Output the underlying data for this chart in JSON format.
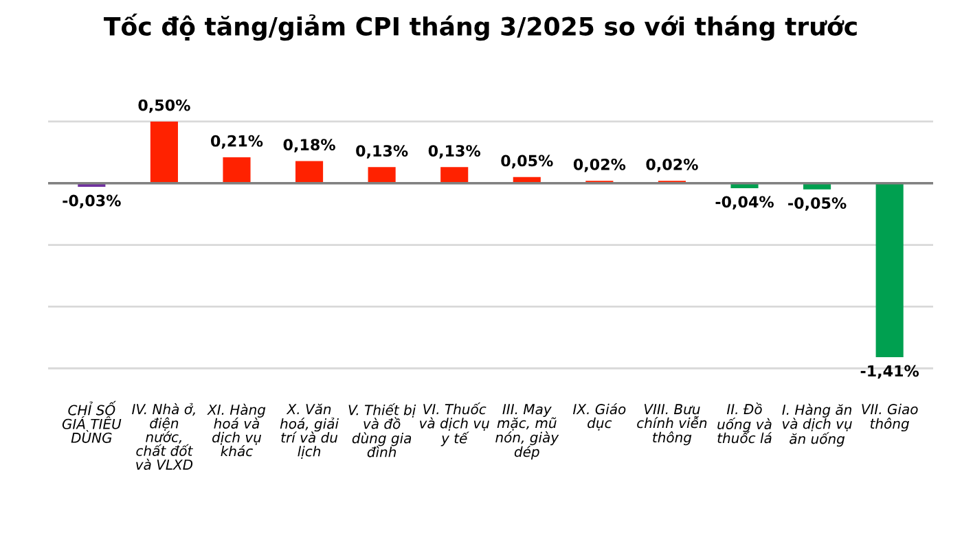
{
  "chart_data": {
    "type": "bar",
    "title": "Tốc độ tăng/giảm CPI tháng 3/2025 so với tháng trước",
    "categories": [
      "CHỈ SỐ\nGIÁ TIÊU\nDÙNG",
      "IV. Nhà ở,\nđiện\nnước,\nchất đốt\nvà VLXD",
      "XI. Hàng\nhoá và\ndịch vụ\nkhác",
      "X. Văn\nhoá, giải\ntrí và du\nlịch",
      "V. Thiết bị\nvà đồ\ndùng gia\nđình",
      "VI. Thuốc\nvà dịch vụ\ny tế",
      "III. May\nmặc, mũ\nnón, giày\ndép",
      "IX. Giáo\ndục",
      "VIII. Bưu\nchính viễn\nthông",
      "II. Đồ\nuống và\nthuốc lá",
      "I. Hàng ăn\nvà dịch vụ\năn uống",
      "VII. Giao\nthông"
    ],
    "values": [
      -0.03,
      0.5,
      0.21,
      0.18,
      0.13,
      0.13,
      0.05,
      0.02,
      0.02,
      -0.04,
      -0.05,
      -1.41
    ],
    "value_labels": [
      "-0,03%",
      "0,50%",
      "0,21%",
      "0,18%",
      "0,13%",
      "0,13%",
      "0,05%",
      "0,02%",
      "0,02%",
      "-0,04%",
      "-0,05%",
      "-1,41%"
    ],
    "colors": [
      "#7030a0",
      "#ff2200",
      "#ff2200",
      "#ff2200",
      "#ff2200",
      "#ff2200",
      "#ff2200",
      "#ff2200",
      "#ff2200",
      "#00a050",
      "#00a050",
      "#00a050"
    ],
    "ref_lines": [
      {
        "axis": "y",
        "value": 0.5,
        "color": "#d9d9d9"
      },
      {
        "axis": "y",
        "value": -0.5,
        "color": "#d9d9d9"
      },
      {
        "axis": "y",
        "value": -1.0,
        "color": "#d9d9d9"
      },
      {
        "axis": "y",
        "value": -1.5,
        "color": "#d9d9d9"
      }
    ],
    "tick_labels": "x",
    "legend": false
  }
}
